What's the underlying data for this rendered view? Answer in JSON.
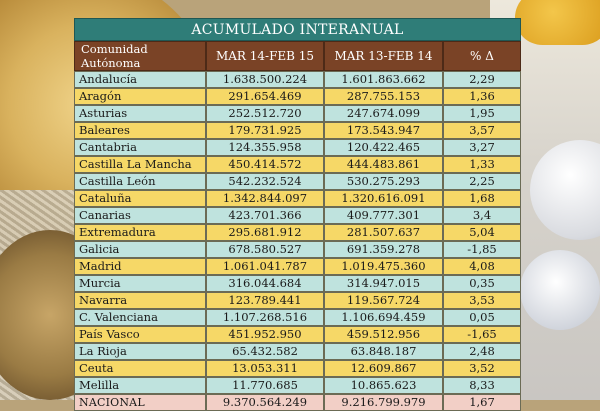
{
  "table": {
    "title": "ACUMULADO INTERANUAL",
    "headers": [
      "Comunidad Autónoma",
      "MAR 14-FEB 15",
      "MAR 13-FEB 14",
      "% Δ"
    ],
    "rows": [
      {
        "region": "Andalucía",
        "v2015": "1.638.500.224",
        "v2014": "1.601.863.662",
        "pct": "2,29"
      },
      {
        "region": "Aragón",
        "v2015": "291.654.469",
        "v2014": "287.755.153",
        "pct": "1,36"
      },
      {
        "region": "Asturias",
        "v2015": "252.512.720",
        "v2014": "247.674.099",
        "pct": "1,95"
      },
      {
        "region": "Baleares",
        "v2015": "179.731.925",
        "v2014": "173.543.947",
        "pct": "3,57"
      },
      {
        "region": "Cantabria",
        "v2015": "124.355.958",
        "v2014": "120.422.465",
        "pct": "3,27"
      },
      {
        "region": "Castilla La Mancha",
        "v2015": "450.414.572",
        "v2014": "444.483.861",
        "pct": "1,33"
      },
      {
        "region": "Castilla León",
        "v2015": "542.232.524",
        "v2014": "530.275.293",
        "pct": "2,25"
      },
      {
        "region": "Cataluña",
        "v2015": "1.342.844.097",
        "v2014": "1.320.616.091",
        "pct": "1,68"
      },
      {
        "region": "Canarias",
        "v2015": "423.701.366",
        "v2014": "409.777.301",
        "pct": "3,4"
      },
      {
        "region": "Extremadura",
        "v2015": "295.681.912",
        "v2014": "281.507.637",
        "pct": "5,04"
      },
      {
        "region": "Galicia",
        "v2015": "678.580.527",
        "v2014": "691.359.278",
        "pct": "-1,85"
      },
      {
        "region": "Madrid",
        "v2015": "1.061.041.787",
        "v2014": "1.019.475.360",
        "pct": "4,08"
      },
      {
        "region": "Murcia",
        "v2015": "316.044.684",
        "v2014": "314.947.015",
        "pct": "0,35"
      },
      {
        "region": "Navarra",
        "v2015": "123.789.441",
        "v2014": "119.567.724",
        "pct": "3,53"
      },
      {
        "region": "C. Valenciana",
        "v2015": "1.107.268.516",
        "v2014": "1.106.694.459",
        "pct": "0,05"
      },
      {
        "region": "País Vasco",
        "v2015": "451.952.950",
        "v2014": "459.512.956",
        "pct": "-1,65"
      },
      {
        "region": "La Rioja",
        "v2015": "65.432.582",
        "v2014": "63.848.187",
        "pct": "2,48"
      },
      {
        "region": "Ceuta",
        "v2015": "13.053.311",
        "v2014": "12.609.867",
        "pct": "3,52"
      },
      {
        "region": "Melilla",
        "v2015": "11.770.685",
        "v2014": "10.865.623",
        "pct": "8,33"
      },
      {
        "region": "NACIONAL",
        "v2015": "9.370.564.249",
        "v2014": "9.216.799.979",
        "pct": "1,67"
      }
    ]
  },
  "colors": {
    "title_bg": "#2f7d78",
    "header_bg": "#7a4326",
    "row_teal": "#bfe3de",
    "row_yellow": "#f6d867",
    "row_total": "#f2cfc6"
  }
}
